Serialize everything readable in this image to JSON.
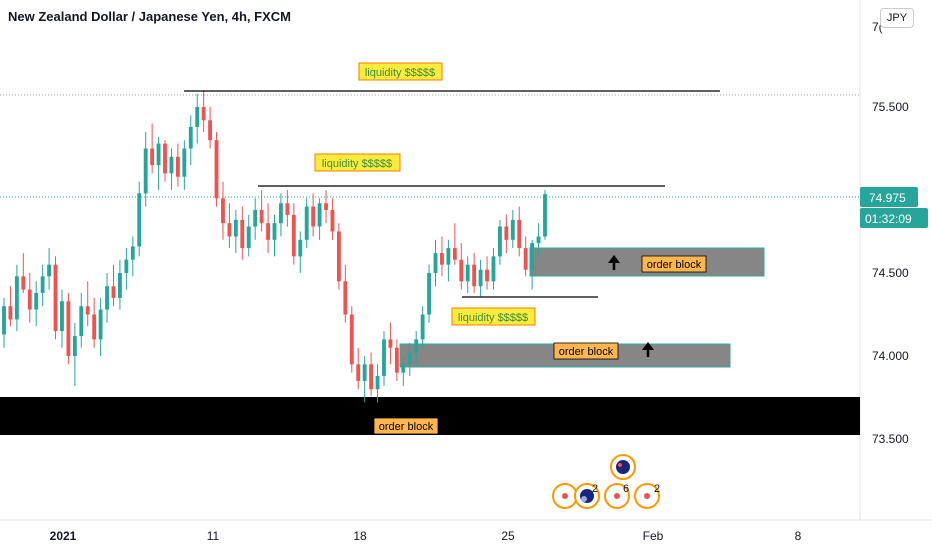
{
  "header": {
    "title": "New Zealand Dollar / Japanese Yen, 4h, FXCM",
    "currency_button": "JPY",
    "top_axis_partial": "7("
  },
  "price_badges": {
    "last_price": "74.975",
    "countdown": "01:32:09"
  },
  "colors": {
    "up": "#26a69a",
    "down": "#ef5350",
    "label_bg": "#ffeb3b",
    "label_text_green": "#4caf50",
    "ob_label_bg": "#ffb74d",
    "ob_box": "#808080",
    "ob_black": "#000000",
    "badge": "#26a69a"
  },
  "annotations": {
    "liquidity_labels": [
      "liquidity $$$$$",
      "liquidity $$$$$",
      "liquidity $$$$$"
    ],
    "order_block_labels": [
      "order block",
      "order block",
      "order block"
    ]
  },
  "events": {
    "counts": [
      "2",
      "6",
      "2"
    ]
  },
  "chart_data": {
    "type": "candlestick",
    "title": "New Zealand Dollar / Japanese Yen, 4h, FXCM",
    "y_axis": {
      "ticks": [
        "73.500",
        "74.000",
        "74.500",
        "75.500"
      ],
      "tick_values": [
        73.5,
        74.0,
        74.5,
        75.5
      ],
      "range": [
        73.2,
        76.0
      ]
    },
    "x_axis": {
      "ticks": [
        "2021",
        "11",
        "18",
        "25",
        "Feb",
        "8"
      ]
    },
    "last_price": 74.975,
    "ohlc": [
      [
        74.13,
        74.35,
        74.05,
        74.3
      ],
      [
        74.3,
        74.42,
        74.18,
        74.22
      ],
      [
        74.22,
        74.55,
        74.15,
        74.48
      ],
      [
        74.48,
        74.62,
        74.38,
        74.4
      ],
      [
        74.4,
        74.5,
        74.2,
        74.28
      ],
      [
        74.28,
        74.45,
        74.18,
        74.38
      ],
      [
        74.38,
        74.55,
        74.3,
        74.48
      ],
      [
        74.48,
        74.65,
        74.4,
        74.55
      ],
      [
        74.55,
        74.6,
        74.1,
        74.15
      ],
      [
        74.15,
        74.4,
        74.05,
        74.33
      ],
      [
        74.33,
        74.38,
        73.95,
        74.0
      ],
      [
        74.0,
        74.2,
        73.82,
        74.12
      ],
      [
        74.12,
        74.38,
        74.05,
        74.3
      ],
      [
        74.3,
        74.45,
        74.18,
        74.25
      ],
      [
        74.25,
        74.35,
        74.05,
        74.1
      ],
      [
        74.1,
        74.35,
        74.0,
        74.28
      ],
      [
        74.28,
        74.5,
        74.2,
        74.42
      ],
      [
        74.42,
        74.55,
        74.3,
        74.35
      ],
      [
        74.35,
        74.58,
        74.28,
        74.5
      ],
      [
        74.5,
        74.65,
        74.4,
        74.58
      ],
      [
        74.58,
        74.72,
        74.48,
        74.66
      ],
      [
        74.66,
        75.05,
        74.6,
        74.98
      ],
      [
        74.98,
        75.35,
        74.9,
        75.25
      ],
      [
        75.25,
        75.4,
        75.1,
        75.15
      ],
      [
        75.15,
        75.32,
        75.0,
        75.28
      ],
      [
        75.28,
        75.3,
        75.05,
        75.1
      ],
      [
        75.1,
        75.25,
        75.0,
        75.2
      ],
      [
        75.2,
        75.28,
        75.02,
        75.08
      ],
      [
        75.08,
        75.3,
        75.0,
        75.25
      ],
      [
        75.25,
        75.45,
        75.15,
        75.38
      ],
      [
        75.38,
        75.58,
        75.28,
        75.5
      ],
      [
        75.5,
        75.6,
        75.35,
        75.42
      ],
      [
        75.42,
        75.5,
        75.25,
        75.3
      ],
      [
        75.3,
        75.35,
        74.9,
        74.95
      ],
      [
        74.95,
        75.05,
        74.7,
        74.8
      ],
      [
        74.8,
        74.92,
        74.65,
        74.72
      ],
      [
        74.72,
        74.88,
        74.62,
        74.82
      ],
      [
        74.82,
        74.9,
        74.58,
        74.65
      ],
      [
        74.65,
        74.85,
        74.6,
        74.78
      ],
      [
        74.78,
        74.95,
        74.7,
        74.88
      ],
      [
        74.88,
        75.0,
        74.75,
        74.8
      ],
      [
        74.8,
        74.92,
        74.62,
        74.7
      ],
      [
        74.7,
        74.85,
        74.6,
        74.8
      ],
      [
        74.8,
        74.98,
        74.72,
        74.92
      ],
      [
        74.92,
        75.0,
        74.78,
        74.85
      ],
      [
        74.85,
        74.92,
        74.55,
        74.6
      ],
      [
        74.6,
        74.75,
        74.5,
        74.7
      ],
      [
        74.7,
        74.95,
        74.65,
        74.9
      ],
      [
        74.9,
        74.98,
        74.72,
        74.78
      ],
      [
        74.78,
        74.95,
        74.7,
        74.92
      ],
      [
        74.92,
        75.0,
        74.8,
        74.88
      ],
      [
        74.88,
        74.95,
        74.7,
        74.75
      ],
      [
        74.75,
        74.8,
        74.4,
        74.45
      ],
      [
        74.45,
        74.55,
        74.2,
        74.25
      ],
      [
        74.25,
        74.3,
        73.9,
        73.95
      ],
      [
        73.95,
        74.05,
        73.8,
        73.85
      ],
      [
        73.85,
        74.0,
        73.72,
        73.95
      ],
      [
        73.95,
        74.02,
        73.76,
        73.8
      ],
      [
        73.8,
        73.95,
        73.72,
        73.88
      ],
      [
        73.88,
        74.15,
        73.82,
        74.1
      ],
      [
        74.1,
        74.2,
        73.95,
        74.05
      ],
      [
        74.05,
        74.1,
        73.85,
        73.9
      ],
      [
        73.9,
        74.0,
        73.82,
        73.95
      ],
      [
        73.95,
        74.08,
        73.88,
        74.02
      ],
      [
        74.02,
        74.15,
        73.95,
        74.1
      ],
      [
        74.1,
        74.3,
        74.05,
        74.25
      ],
      [
        74.25,
        74.55,
        74.2,
        74.5
      ],
      [
        74.5,
        74.7,
        74.42,
        74.62
      ],
      [
        74.62,
        74.72,
        74.48,
        74.55
      ],
      [
        74.55,
        74.7,
        74.45,
        74.65
      ],
      [
        74.65,
        74.8,
        74.55,
        74.58
      ],
      [
        74.58,
        74.68,
        74.4,
        74.45
      ],
      [
        74.45,
        74.6,
        74.38,
        74.55
      ],
      [
        74.55,
        74.62,
        74.38,
        74.42
      ],
      [
        74.42,
        74.58,
        74.36,
        74.52
      ],
      [
        74.52,
        74.6,
        74.4,
        74.45
      ],
      [
        74.45,
        74.65,
        74.4,
        74.6
      ],
      [
        74.6,
        74.82,
        74.55,
        74.78
      ],
      [
        74.78,
        74.85,
        74.62,
        74.7
      ],
      [
        74.7,
        74.88,
        74.65,
        74.82
      ],
      [
        74.82,
        74.9,
        74.6,
        74.65
      ],
      [
        74.65,
        74.72,
        74.48,
        74.52
      ],
      [
        74.52,
        74.7,
        74.4,
        74.68
      ],
      [
        74.68,
        74.8,
        74.6,
        74.72
      ],
      [
        74.72,
        75.0,
        74.7,
        74.975
      ]
    ],
    "annotations": [
      {
        "type": "hline",
        "price": 75.6,
        "label": "liquidity $$$$$"
      },
      {
        "type": "hline",
        "price": 75.03,
        "label": "liquidity $$$$$"
      },
      {
        "type": "hline",
        "price": 74.37,
        "label": "liquidity $$$$$"
      },
      {
        "type": "zone",
        "price_top": 74.68,
        "price_bottom": 74.51,
        "label": "order block"
      },
      {
        "type": "zone",
        "price_top": 74.09,
        "price_bottom": 73.97,
        "label": "order block"
      },
      {
        "type": "zone",
        "price_top": 73.78,
        "price_bottom": 73.55,
        "label": "order block"
      }
    ],
    "grid": false
  }
}
